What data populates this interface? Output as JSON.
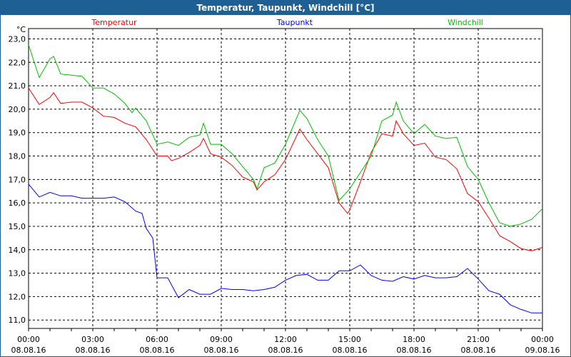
{
  "window": {
    "title": "Temperatur, Taupunkt, Windchill [°C]"
  },
  "chart_data": {
    "type": "line",
    "title": "Temperatur, Taupunkt, Windchill [°C]",
    "ylabel": "°C",
    "xlabel": "",
    "ylim": [
      10.64,
      23.44
    ],
    "xlim_hours": [
      0,
      24
    ],
    "grid": true,
    "legend_placement": "top",
    "yticks": [
      "11,0",
      "12,0",
      "13,0",
      "14,0",
      "15,0",
      "16,0",
      "17,0",
      "18,0",
      "19,0",
      "20,0",
      "21,0",
      "22,0",
      "23,0"
    ],
    "ytick_values": [
      11,
      12,
      13,
      14,
      15,
      16,
      17,
      18,
      19,
      20,
      21,
      22,
      23
    ],
    "xticks": [
      {
        "time": "00:00",
        "date": "08.08.16"
      },
      {
        "time": "03:00",
        "date": "08.08.16"
      },
      {
        "time": "06:00",
        "date": "08.08.16"
      },
      {
        "time": "09:00",
        "date": "08.08.16"
      },
      {
        "time": "12:00",
        "date": "08.08.16"
      },
      {
        "time": "15:00",
        "date": "08.08.16"
      },
      {
        "time": "18:00",
        "date": "08.08.16"
      },
      {
        "time": "21:00",
        "date": "08.08.16"
      },
      {
        "time": "00:00",
        "date": "09.08.16"
      }
    ],
    "series": [
      {
        "name": "Temperatur",
        "color": "#ff0000",
        "x": [
          0,
          0.5,
          1,
          1.17,
          1.5,
          2,
          2.5,
          3,
          3.5,
          4,
          4.5,
          5,
          5.5,
          6,
          6.5,
          6.67,
          7,
          7.5,
          8,
          8.17,
          8.5,
          9,
          9.5,
          10,
          10.5,
          10.67,
          11,
          11.5,
          12,
          12.67,
          13,
          13.5,
          14,
          14.5,
          14.9,
          15,
          15.5,
          16,
          16.5,
          17,
          17.17,
          17.5,
          18,
          18.5,
          19,
          19.5,
          20,
          20.5,
          21,
          21.5,
          22,
          22.5,
          23,
          23.5,
          24
        ],
        "values": [
          20.9,
          20.2,
          20.5,
          20.7,
          20.25,
          20.3,
          20.3,
          20.05,
          19.7,
          19.65,
          19.4,
          19.25,
          18.7,
          18.0,
          18.0,
          17.8,
          17.9,
          18.15,
          18.45,
          18.75,
          18.1,
          17.95,
          17.6,
          17.1,
          16.9,
          16.55,
          16.9,
          17.2,
          17.85,
          19.15,
          18.7,
          18.1,
          17.5,
          16.0,
          15.55,
          15.7,
          16.9,
          18.15,
          18.95,
          18.85,
          19.5,
          18.95,
          18.45,
          18.55,
          17.95,
          17.85,
          17.45,
          16.4,
          16.05,
          15.35,
          14.6,
          14.35,
          14.05,
          13.95,
          14.1
        ]
      },
      {
        "name": "Taupunkt",
        "color": "#0000ff",
        "x": [
          0,
          0.5,
          1,
          1.5,
          2,
          2.5,
          3,
          3.5,
          4,
          4.5,
          5,
          5.3,
          5.5,
          5.8,
          6,
          6.5,
          7,
          7.5,
          8,
          8.5,
          9,
          9.5,
          10,
          10.5,
          11,
          11.5,
          12,
          12.5,
          13,
          13.5,
          14,
          14.5,
          15,
          15.5,
          16,
          16.5,
          17,
          17.5,
          18,
          18.5,
          19,
          19.5,
          20,
          20.5,
          21,
          21.5,
          22,
          22.5,
          23,
          23.5,
          24
        ],
        "values": [
          16.8,
          16.25,
          16.45,
          16.3,
          16.3,
          16.2,
          16.2,
          16.2,
          16.25,
          16.05,
          15.65,
          15.55,
          14.9,
          14.5,
          12.8,
          12.8,
          11.95,
          12.3,
          12.1,
          12.1,
          12.35,
          12.3,
          12.3,
          12.25,
          12.3,
          12.4,
          12.7,
          12.9,
          12.95,
          12.7,
          12.7,
          13.1,
          13.1,
          13.35,
          12.9,
          12.7,
          12.65,
          12.85,
          12.75,
          12.9,
          12.8,
          12.8,
          12.85,
          13.2,
          12.75,
          12.25,
          12.1,
          11.65,
          11.45,
          11.3,
          11.3
        ]
      },
      {
        "name": "Windchill",
        "color": "#00c000",
        "x": [
          0,
          0.5,
          1,
          1.17,
          1.5,
          2,
          2.5,
          3,
          3.5,
          4,
          4.5,
          4.83,
          5,
          5.5,
          6,
          6.5,
          7,
          7.5,
          8,
          8.17,
          8.5,
          9,
          9.5,
          10,
          10.5,
          10.67,
          11,
          11.5,
          12,
          12.67,
          13,
          13.5,
          14,
          14.5,
          15,
          15.5,
          16,
          16.5,
          17,
          17.17,
          17.5,
          18,
          18.5,
          19,
          19.5,
          20,
          20.5,
          21,
          21.5,
          22,
          22.5,
          23,
          23.5,
          24
        ],
        "values": [
          22.75,
          21.35,
          22.15,
          22.25,
          21.5,
          21.45,
          21.4,
          20.9,
          20.9,
          20.65,
          20.25,
          19.85,
          20.05,
          19.5,
          18.5,
          18.6,
          18.45,
          18.8,
          18.9,
          19.4,
          18.5,
          18.5,
          18.1,
          17.55,
          17.0,
          16.6,
          17.5,
          17.7,
          18.5,
          19.95,
          19.6,
          18.7,
          18.0,
          16.1,
          16.6,
          17.3,
          18.0,
          19.5,
          19.75,
          20.3,
          19.5,
          18.95,
          19.35,
          18.85,
          18.75,
          18.8,
          17.55,
          17.0,
          16.0,
          15.15,
          15.0,
          15.1,
          15.3,
          15.75
        ]
      }
    ]
  }
}
